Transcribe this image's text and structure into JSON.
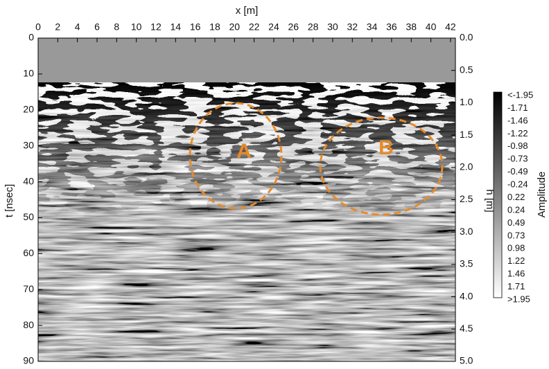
{
  "chart_data": {
    "type": "radargram",
    "xlabel": "x [m]",
    "ylabel": "t [nsec]",
    "y2label": "h [m]",
    "xlim": [
      0,
      42.5
    ],
    "xticks": [
      0,
      2,
      4,
      6,
      8,
      10,
      12,
      14,
      16,
      18,
      20,
      22,
      24,
      26,
      28,
      30,
      32,
      34,
      36,
      38,
      40,
      42
    ],
    "ylim": [
      0,
      90
    ],
    "y_inverted": true,
    "yticks": [
      0,
      10,
      20,
      30,
      40,
      50,
      60,
      70,
      80,
      90
    ],
    "y2lim": [
      0,
      5
    ],
    "y2ticks": [
      {
        "value": 0,
        "label": "0.0"
      },
      {
        "value": 0.5,
        "label": "0.5"
      },
      {
        "value": 1,
        "label": "1.0"
      },
      {
        "value": 1.5,
        "label": "1.5"
      },
      {
        "value": 2,
        "label": "2.0"
      },
      {
        "value": 2.5,
        "label": "2.5"
      },
      {
        "value": 3,
        "label": "3.0"
      },
      {
        "value": 3.5,
        "label": "3.5"
      },
      {
        "value": 4,
        "label": "4.0"
      },
      {
        "value": 4.5,
        "label": "4.5"
      },
      {
        "value": 5,
        "label": "5.0"
      }
    ],
    "colorbar": {
      "label": "Amplitude",
      "ticks": [
        "<-1.95",
        "-1.71",
        "-1.46",
        "-1.22",
        "-0.98",
        "-0.73",
        "-0.49",
        "-0.24",
        "0.22",
        "0.24",
        "0.49",
        "0.73",
        "0.98",
        "1.22",
        "1.46",
        "1.71",
        ">1.95"
      ]
    },
    "annotations": [
      "A",
      "B"
    ]
  }
}
